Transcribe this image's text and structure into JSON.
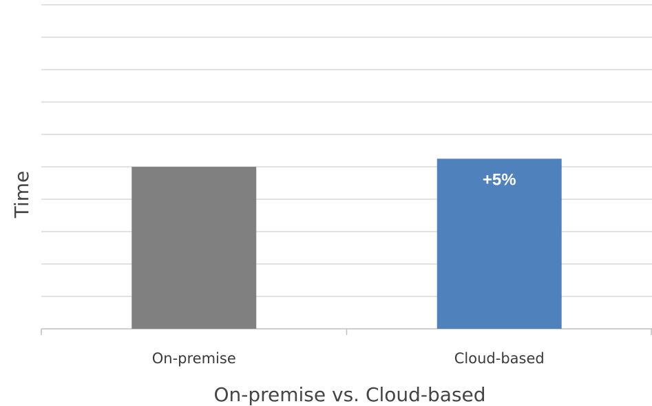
{
  "chart_data": {
    "type": "bar",
    "title": "",
    "xlabel": "On-premise vs. Cloud-based",
    "ylabel": "Time",
    "categories": [
      "On-premise",
      "Cloud-based"
    ],
    "values": [
      100,
      105
    ],
    "ylim": [
      0,
      200
    ],
    "grid": true,
    "gridline_count": 10,
    "colors": [
      "#808080",
      "#4f81bd"
    ],
    "data_labels": [
      "",
      "+5%"
    ],
    "label_color": "#ffffff",
    "gridline_color": "#d9d9d9"
  }
}
